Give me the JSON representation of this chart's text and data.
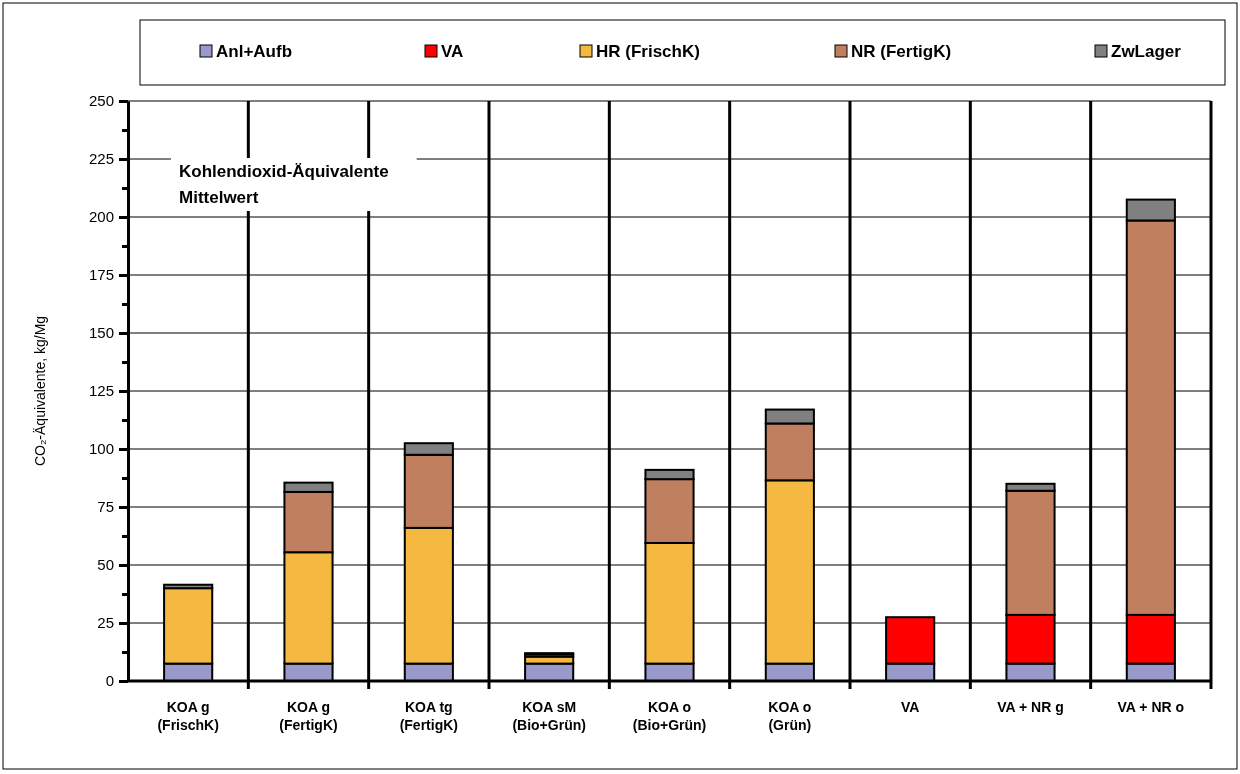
{
  "chart_data": {
    "type": "bar",
    "stacked": true,
    "ylabel": "CO₂-Äquivalente,  kg/Mg",
    "annotations": [
      "Kohlendioxid-Äquivalente\nMittelwert"
    ],
    "categories": [
      "KOA g\n(FrischK)",
      "KOA g\n(FertigK)",
      "KOA tg\n(FertigK)",
      "KOA sM\n(Bio+Grün)",
      "KOA o\n(Bio+Grün)",
      "KOA o\n(Grün)",
      "VA",
      "VA + NR g",
      "VA + NR o"
    ],
    "series": [
      {
        "name": "Anl+Aufb",
        "color": "#9999cc",
        "values": [
          7.5,
          7.5,
          7.5,
          7.5,
          7.5,
          7.5,
          7.5,
          7.5,
          7.5
        ]
      },
      {
        "name": "VA",
        "color": "#ff0000",
        "values": [
          0,
          0,
          0,
          0,
          0,
          0,
          20,
          21,
          21
        ]
      },
      {
        "name": "HR (FrischK)",
        "color": "#f5b942",
        "values": [
          32.5,
          48,
          58.5,
          3,
          52,
          79,
          0,
          0,
          0
        ]
      },
      {
        "name": "NR (FertigK)",
        "color": "#c08060",
        "values": [
          0,
          26,
          31.5,
          1,
          27.5,
          24.5,
          0,
          53.5,
          170
        ]
      },
      {
        "name": "ZwLager",
        "color": "#808080",
        "values": [
          1.5,
          4,
          5,
          0.5,
          4,
          6,
          0,
          3,
          9
        ]
      }
    ],
    "ylim": [
      0,
      250
    ],
    "yticks": [
      0,
      {
        "value": 12.5,
        "label": null
      },
      25,
      {
        "value": 37.5,
        "label": null
      },
      50,
      {
        "value": 62.5,
        "label": null
      },
      75,
      {
        "value": 87.5,
        "label": null
      },
      100,
      {
        "value": 112.5,
        "label": null
      },
      125,
      {
        "value": 137.5,
        "label": null
      },
      150,
      {
        "value": 162.5,
        "label": null
      },
      175,
      {
        "value": 187.5,
        "label": null
      },
      200,
      {
        "value": 212.5,
        "label": null
      },
      225,
      {
        "value": 237.5,
        "label": null
      },
      250
    ],
    "grid": true,
    "legend": "top"
  }
}
